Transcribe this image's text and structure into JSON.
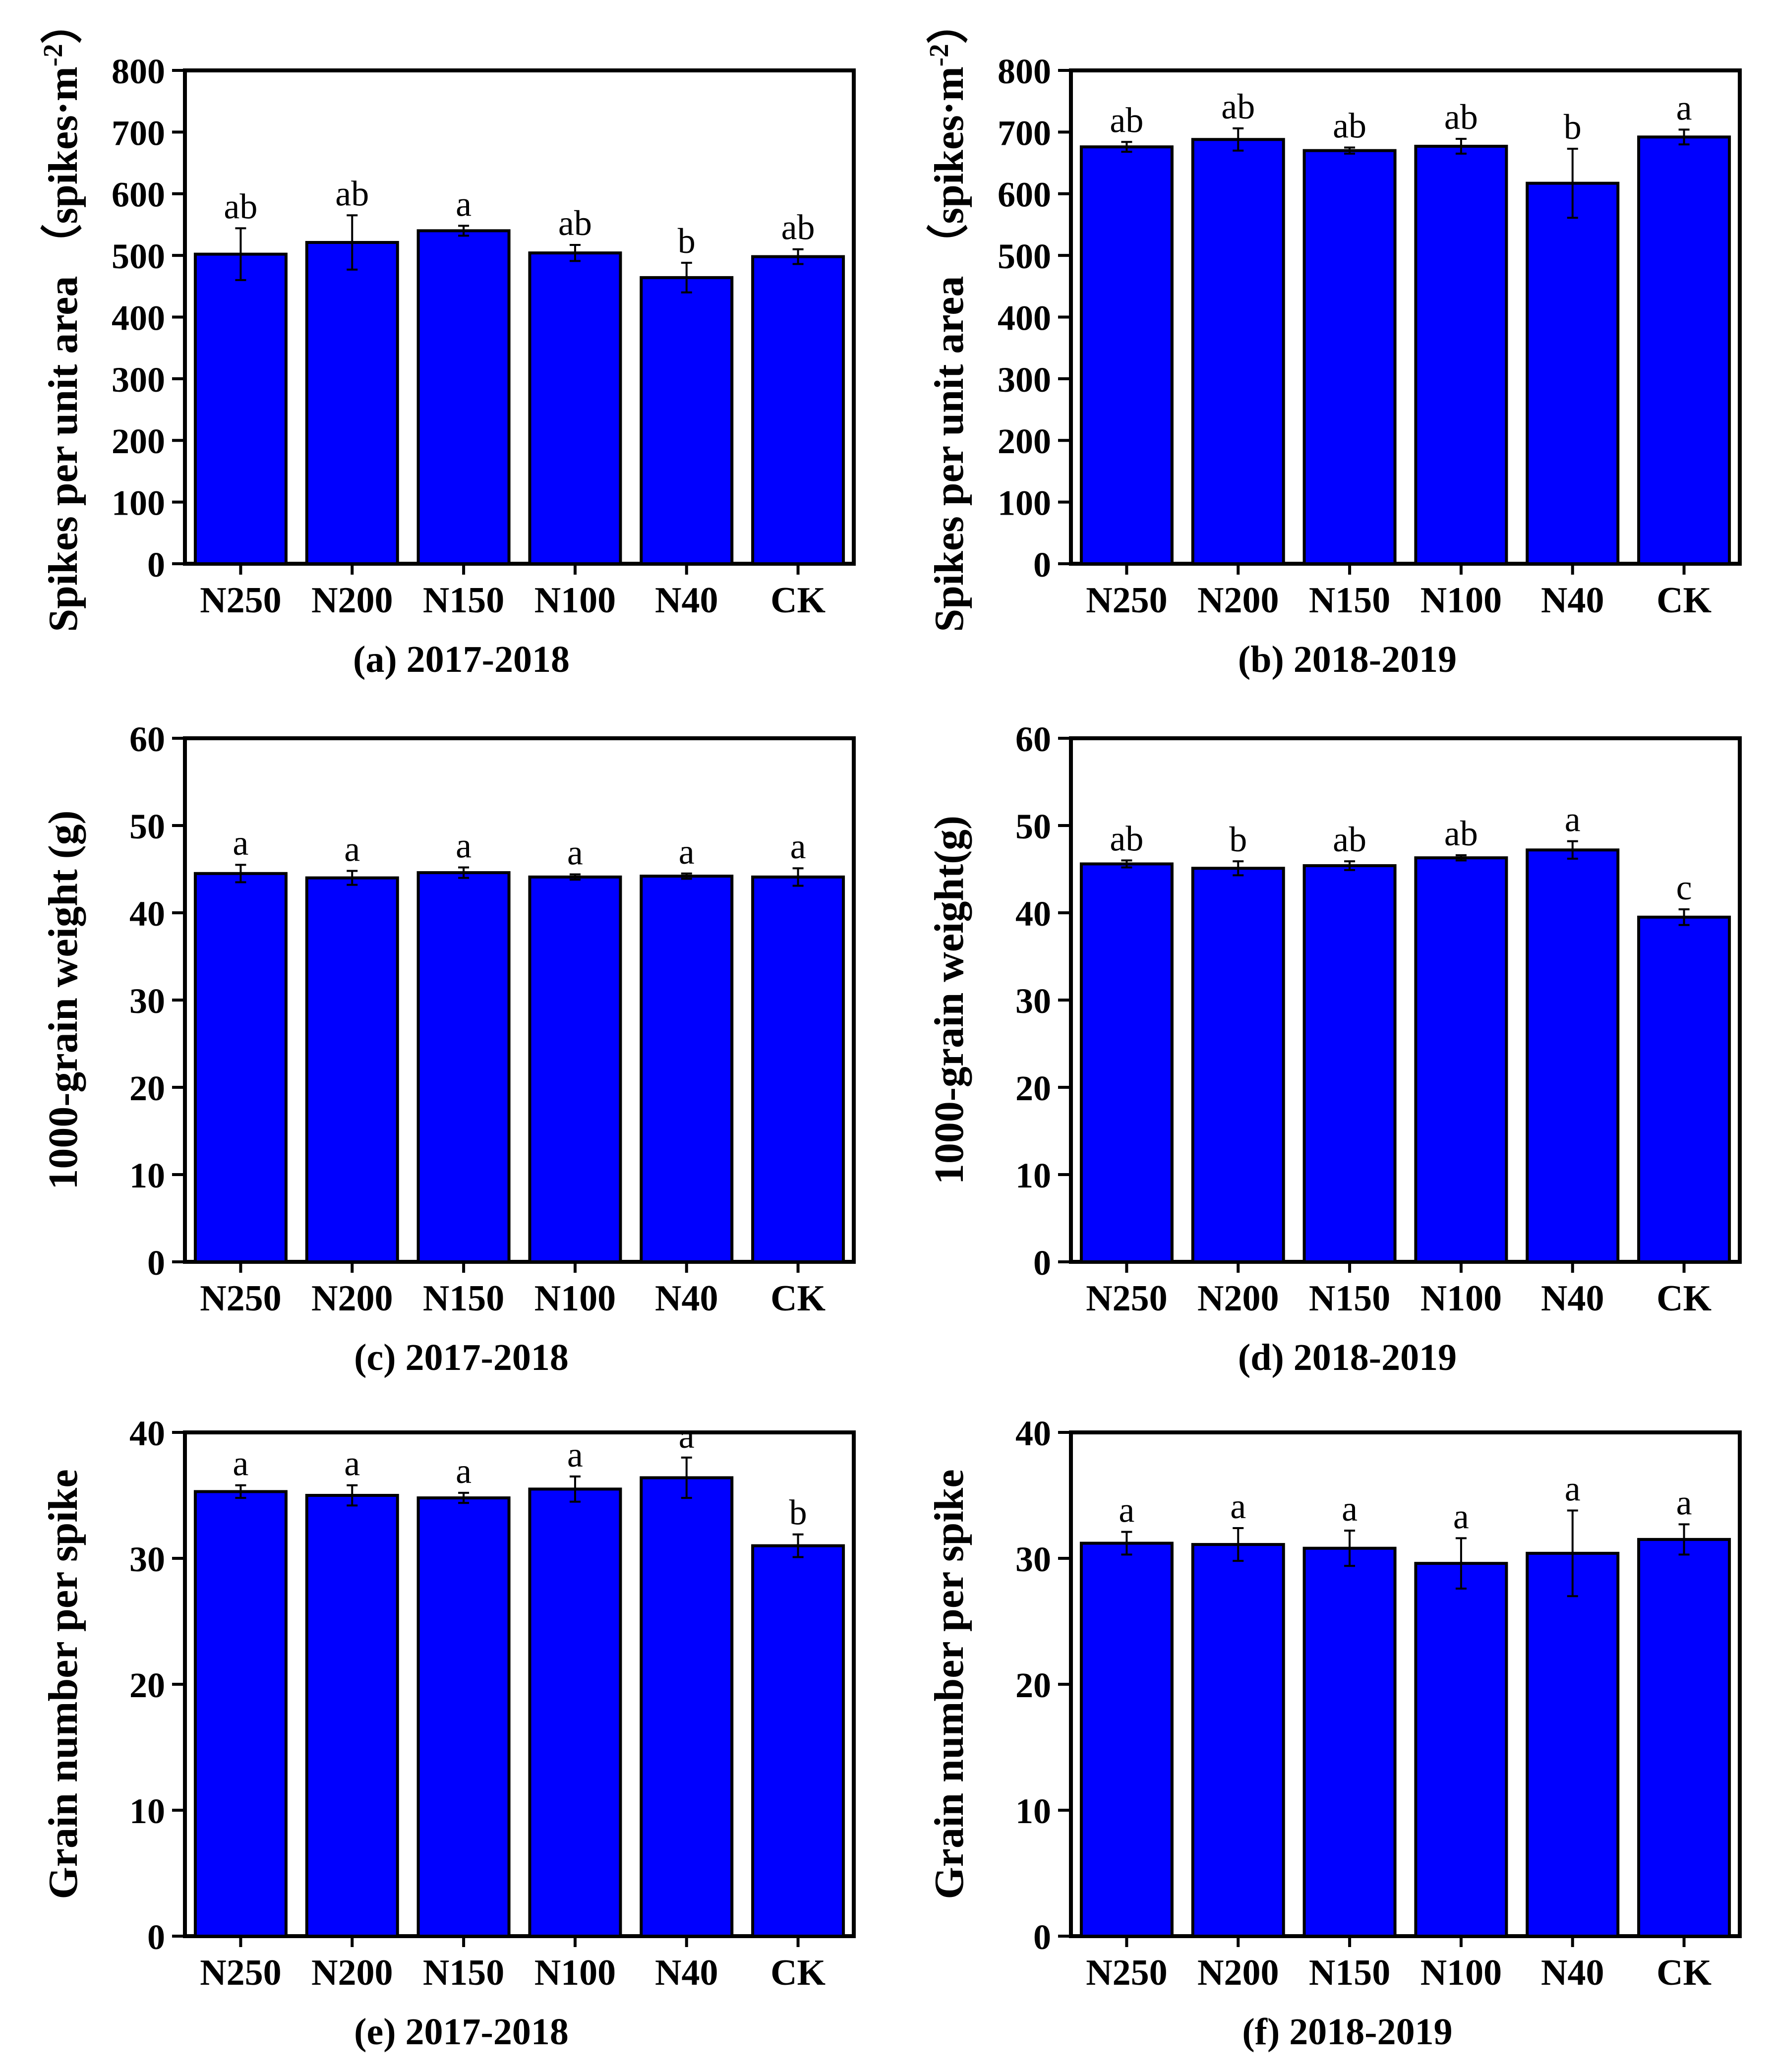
{
  "figure": {
    "background_color": "#ffffff",
    "bar_color": "#0000ff",
    "bar_border_color": "#000000",
    "axis_color": "#000000",
    "error_bar_color": "#000000",
    "text_color": "#000000",
    "categories": [
      "N250",
      "N200",
      "N150",
      "N100",
      "N40",
      "CK"
    ],
    "grid": "off",
    "legend": "none"
  },
  "chart_data": [
    {
      "id": "a",
      "type": "bar",
      "title": "(a) 2017-2018",
      "ylabel": "Spikes per unit area （spikes·m⁻²）",
      "ylabel_parts": {
        "main": "Spikes per unit area （spikes·m",
        "sup": "-2",
        "close": "）"
      },
      "xlabel": "",
      "categories": [
        "N250",
        "N200",
        "N150",
        "N100",
        "N40",
        "CK"
      ],
      "values": [
        502,
        521,
        540,
        504,
        464,
        498
      ],
      "errors": [
        42,
        44,
        8,
        13,
        24,
        12
      ],
      "sig_letters": [
        "ab",
        "ab",
        "a",
        "ab",
        "b",
        "ab"
      ],
      "ylim": [
        0,
        800
      ],
      "ytick_step": 100
    },
    {
      "id": "b",
      "type": "bar",
      "title": "(b) 2018-2019",
      "ylabel": "Spikes per unit area （spikes·m⁻²）",
      "ylabel_parts": {
        "main": "Spikes per unit area （spikes·m",
        "sup": "-2",
        "close": "）"
      },
      "xlabel": "",
      "categories": [
        "N250",
        "N200",
        "N150",
        "N100",
        "N40",
        "CK"
      ],
      "values": [
        676,
        688,
        670,
        677,
        617,
        692
      ],
      "errors": [
        8,
        18,
        5,
        12,
        56,
        12
      ],
      "sig_letters": [
        "ab",
        "ab",
        "ab",
        "ab",
        "b",
        "a"
      ],
      "ylim": [
        0,
        800
      ],
      "ytick_step": 100
    },
    {
      "id": "c",
      "type": "bar",
      "title": "(c) 2017-2018",
      "ylabel": "1000-grain weight (g)",
      "ylabel_parts": {
        "main": "1000-grain weight (g)"
      },
      "xlabel": "",
      "categories": [
        "N250",
        "N200",
        "N150",
        "N100",
        "N40",
        "CK"
      ],
      "values": [
        44.5,
        44.0,
        44.6,
        44.1,
        44.2,
        44.1
      ],
      "errors": [
        1.0,
        0.8,
        0.6,
        0.3,
        0.3,
        1.0
      ],
      "sig_letters": [
        "a",
        "a",
        "a",
        "a",
        "a",
        "a"
      ],
      "ylim": [
        0,
        60
      ],
      "ytick_step": 10
    },
    {
      "id": "d",
      "type": "bar",
      "title": "(d) 2018-2019",
      "ylabel": "1000-grain weight(g)",
      "ylabel_parts": {
        "main": "1000-grain weight(g)"
      },
      "xlabel": "",
      "categories": [
        "N250",
        "N200",
        "N150",
        "N100",
        "N40",
        "CK"
      ],
      "values": [
        45.6,
        45.1,
        45.4,
        46.3,
        47.2,
        39.5
      ],
      "errors": [
        0.4,
        0.8,
        0.5,
        0.3,
        1.0,
        0.9
      ],
      "sig_letters": [
        "ab",
        "b",
        "ab",
        "ab",
        "a",
        "c"
      ],
      "ylim": [
        0,
        60
      ],
      "ytick_step": 10
    },
    {
      "id": "e",
      "type": "bar",
      "title": "(e) 2017-2018",
      "ylabel": "Grain number per spike",
      "ylabel_parts": {
        "main": "Grain number per spike"
      },
      "xlabel": "",
      "categories": [
        "N250",
        "N200",
        "N150",
        "N100",
        "N40",
        "CK"
      ],
      "values": [
        35.3,
        35.0,
        34.8,
        35.5,
        36.4,
        31.0
      ],
      "errors": [
        0.5,
        0.8,
        0.4,
        1.0,
        1.6,
        0.9
      ],
      "sig_letters": [
        "a",
        "a",
        "a",
        "a",
        "a",
        "b"
      ],
      "ylim": [
        0,
        40
      ],
      "ytick_step": 10
    },
    {
      "id": "f",
      "type": "bar",
      "title": "(f) 2018-2019",
      "ylabel": "Grain number per spike",
      "ylabel_parts": {
        "main": "Grain number per spike"
      },
      "xlabel": "",
      "categories": [
        "N250",
        "N200",
        "N150",
        "N100",
        "N40",
        "CK"
      ],
      "values": [
        31.2,
        31.1,
        30.8,
        29.6,
        30.4,
        31.5
      ],
      "errors": [
        0.9,
        1.3,
        1.4,
        2.0,
        3.4,
        1.2
      ],
      "sig_letters": [
        "a",
        "a",
        "a",
        "a",
        "a",
        "a"
      ],
      "ylim": [
        0,
        40
      ],
      "ytick_step": 10
    }
  ]
}
